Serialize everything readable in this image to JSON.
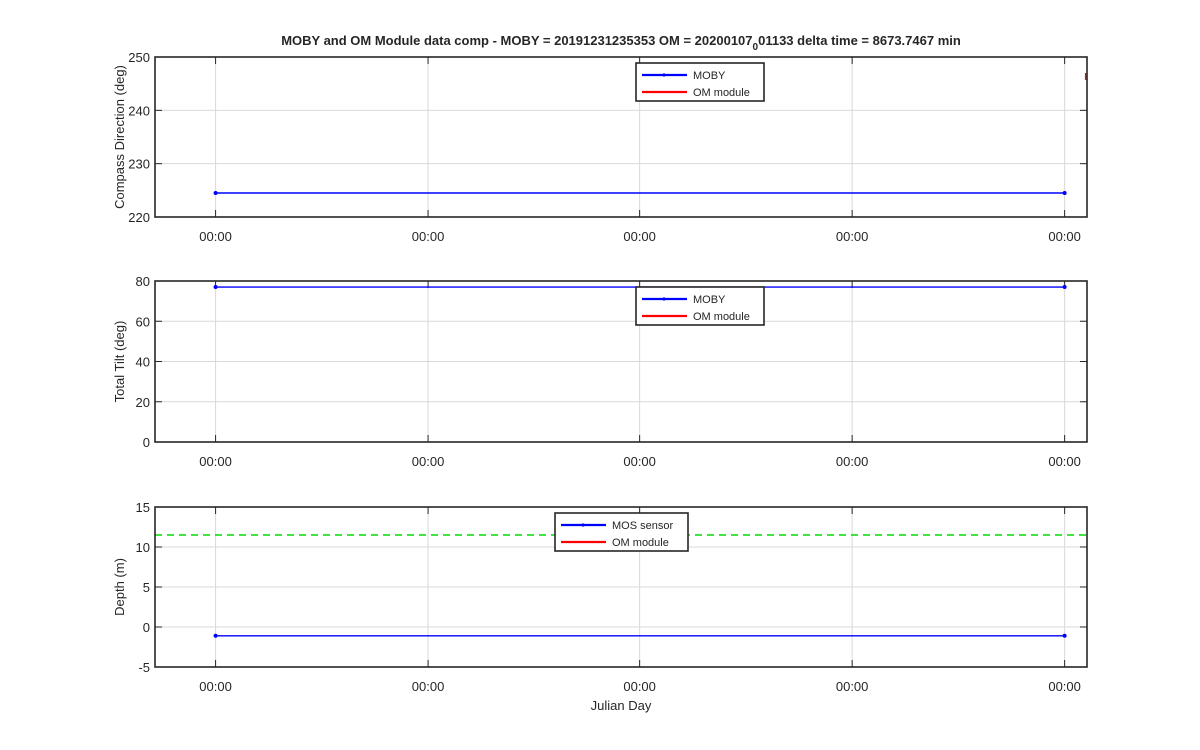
{
  "figure": {
    "title_parts": {
      "pre": "MOBY and OM Module data comp - MOBY = 20191231235353 OM = 20200107",
      "sub": "0",
      "post": "01133 delta time = 8673.7467 min"
    },
    "xlabel": "Julian Day"
  },
  "colors": {
    "moby": "#0000ff",
    "om": "#ff0000",
    "reference": "#00dd00",
    "grid": "#d9d9d9",
    "axes": "#262626"
  },
  "chart_data": [
    {
      "type": "line",
      "ylabel": "Compass Direction (deg)",
      "ylim": [
        220,
        250
      ],
      "yticks": [
        220,
        230,
        240,
        250
      ],
      "xlim": [
        0,
        1
      ],
      "xtick_positions": [
        0.065,
        0.293,
        0.52,
        0.748,
        0.976
      ],
      "xtick_labels": [
        "00:00",
        "00:00",
        "00:00",
        "00:00",
        "00:00"
      ],
      "grid": true,
      "legend_position": "top-center",
      "series": [
        {
          "name": "MOBY",
          "color": "#0000ff",
          "style": "solid",
          "marker": true,
          "x": [
            0.065,
            0.976
          ],
          "y": [
            224.5,
            224.5
          ]
        },
        {
          "name": "OM module",
          "color": "#ff0000",
          "style": "solid",
          "marker": false,
          "x": [
            0.9985,
            0.9985
          ],
          "y": [
            245.7,
            247.0
          ]
        }
      ]
    },
    {
      "type": "line",
      "ylabel": "Total Tilt (deg)",
      "ylim": [
        0,
        80
      ],
      "yticks": [
        0,
        20,
        40,
        60,
        80
      ],
      "xlim": [
        0,
        1
      ],
      "xtick_positions": [
        0.065,
        0.293,
        0.52,
        0.748,
        0.976
      ],
      "xtick_labels": [
        "00:00",
        "00:00",
        "00:00",
        "00:00",
        "00:00"
      ],
      "grid": true,
      "legend_position": "top-center",
      "series": [
        {
          "name": "MOBY",
          "color": "#0000ff",
          "style": "solid",
          "marker": true,
          "x": [
            0.065,
            0.976
          ],
          "y": [
            77,
            77
          ]
        },
        {
          "name": "OM module",
          "color": "#ff0000",
          "style": "solid",
          "marker": false,
          "x": [],
          "y": []
        }
      ]
    },
    {
      "type": "line",
      "ylabel": "Depth (m)",
      "ylim": [
        -5,
        15
      ],
      "yticks": [
        -5,
        0,
        5,
        10,
        15
      ],
      "xlim": [
        0,
        1
      ],
      "xtick_positions": [
        0.065,
        0.293,
        0.52,
        0.748,
        0.976
      ],
      "xtick_labels": [
        "00:00",
        "00:00",
        "00:00",
        "00:00",
        "00:00"
      ],
      "grid": true,
      "legend_position": "top-center",
      "series": [
        {
          "name": "MOS sensor",
          "color": "#0000ff",
          "style": "solid",
          "marker": true,
          "x": [
            0.065,
            0.976
          ],
          "y": [
            -1.1,
            -1.1
          ]
        },
        {
          "name": "OM module",
          "color": "#ff0000",
          "style": "solid",
          "marker": false,
          "x": [],
          "y": []
        },
        {
          "color": "#00dd00",
          "style": "dashed",
          "marker": false,
          "legend": false,
          "x": [
            0,
            1
          ],
          "y": [
            11.5,
            11.5
          ]
        }
      ]
    }
  ]
}
